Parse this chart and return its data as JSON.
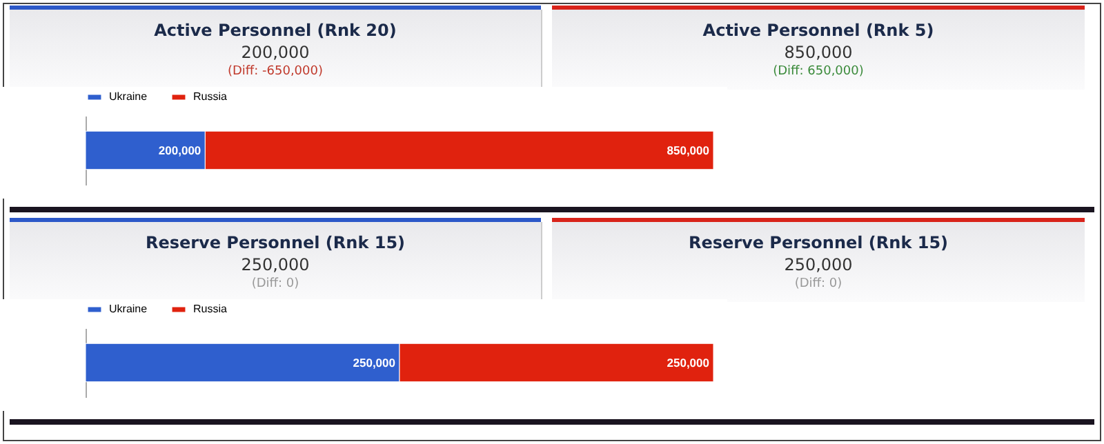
{
  "chart_data": [
    {
      "type": "other",
      "title": "Active Personnel (Rnk 20)",
      "subtitle": "200,000",
      "annotations": [
        "(Diff: -650,000)"
      ],
      "colors": [
        "#2c58c8",
        "#c0392b"
      ]
    },
    {
      "type": "other",
      "title": "Active Personnel (Rnk 5)",
      "subtitle": "850,000",
      "annotations": [
        "(Diff: 650,000)"
      ],
      "colors": [
        "#d8231a",
        "#3a8a3a"
      ]
    },
    {
      "type": "bar",
      "orientation": "horizontal",
      "stacked": true,
      "categories": [
        null
      ],
      "series": [
        {
          "name": "Ukraine",
          "color": "#2f5fce",
          "values": [
            200000
          ],
          "value_labels": [
            "200,000"
          ]
        },
        {
          "name": "Russia",
          "color": "#e0220e",
          "values": [
            850000
          ],
          "value_labels": [
            "850,000"
          ]
        }
      ],
      "legend": "top left",
      "tick_labels": false
    },
    {
      "type": "other",
      "title": "Reserve Personnel (Rnk 15)",
      "subtitle": "250,000",
      "annotations": [
        "(Diff: 0)"
      ],
      "colors": [
        "#2c58c8",
        "#999999"
      ]
    },
    {
      "type": "other",
      "title": "Reserve Personnel (Rnk 15)",
      "subtitle": "250,000",
      "annotations": [
        "(Diff: 0)"
      ],
      "colors": [
        "#d8231a",
        "#999999"
      ]
    },
    {
      "type": "bar",
      "orientation": "horizontal",
      "stacked": true,
      "categories": [
        null
      ],
      "series": [
        {
          "name": "Ukraine",
          "color": "#2f5fce",
          "values": [
            250000
          ],
          "value_labels": [
            "250,000"
          ]
        },
        {
          "name": "Russia",
          "color": "#e0220e",
          "values": [
            250000
          ],
          "value_labels": [
            "250,000"
          ]
        }
      ],
      "legend": "top left",
      "tick_labels": false
    }
  ]
}
